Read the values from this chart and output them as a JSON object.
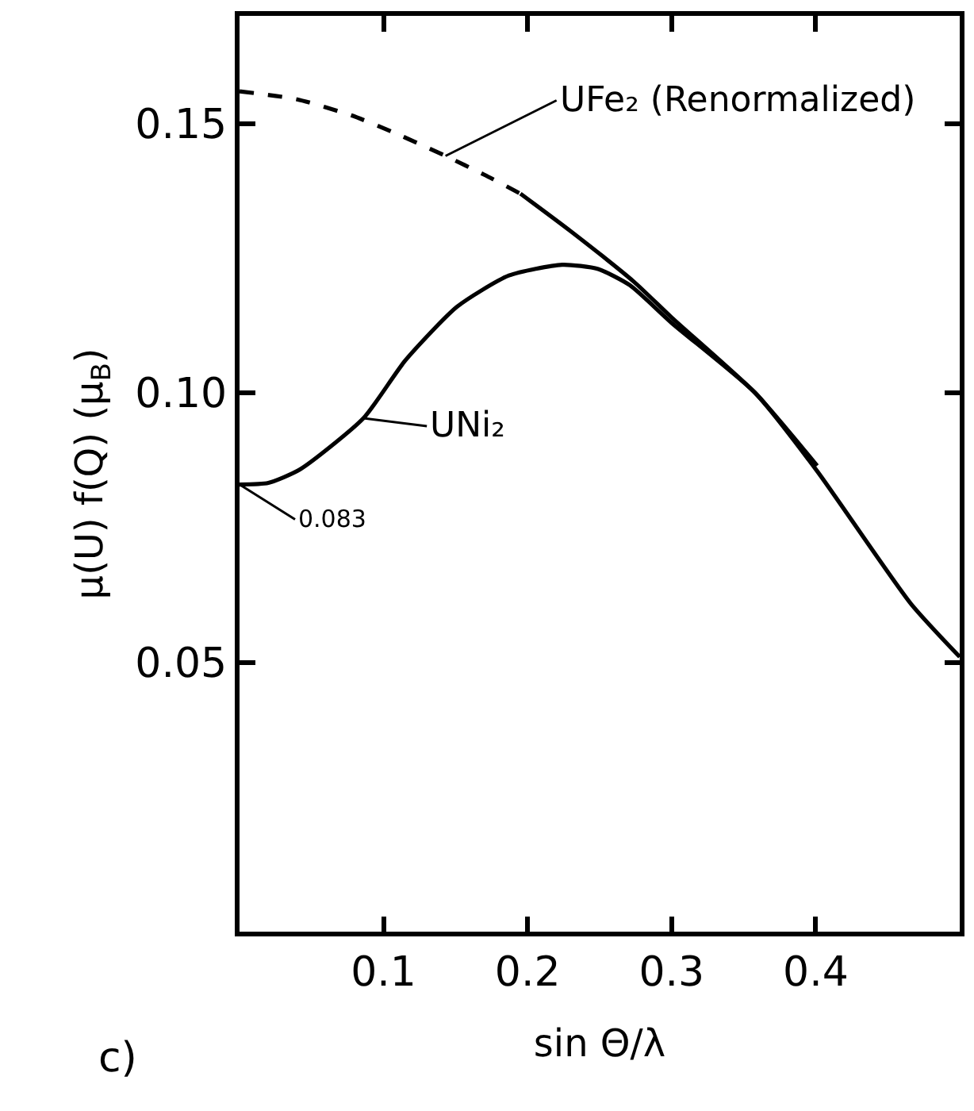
{
  "chart_data": {
    "type": "line",
    "xlabel": "sin Θ/λ",
    "ylabel": "μ(U) f(Q) (μ$_{B}$)",
    "xlim": [
      0,
      0.5
    ],
    "ylim": [
      0,
      0.17
    ],
    "xticks": [
      0.1,
      0.2,
      0.3,
      0.4
    ],
    "yticks": [
      0.05,
      {
        "value": 0.1,
        "label": "0.10"
      },
      0.15
    ],
    "marker": "none",
    "series": [
      {
        "color": "#000000",
        "line_style": "solid",
        "x": [
          0,
          0.02,
          0.042,
          0.086,
          0.115,
          0.151,
          0.187,
          0.224,
          0.249,
          0.271,
          0.3,
          0.358,
          0.401,
          0.466,
          0.5
        ],
        "values": [
          0.083,
          0.0833,
          0.0858,
          0.0953,
          0.106,
          0.116,
          0.1218,
          0.1238,
          0.123,
          0.12,
          0.113,
          0.1,
          0.0855,
          0.0609,
          0.051
        ]
      },
      {
        "color": "#000000",
        "line_style": "dashed",
        "x": [
          0,
          0.04,
          0.078,
          0.11,
          0.143,
          0.17,
          0.195
        ],
        "values": [
          0.156,
          0.1545,
          0.1515,
          0.148,
          0.144,
          0.1405,
          0.137
        ]
      },
      {
        "color": "#000000",
        "line_style": "solid",
        "x": [
          0.195,
          0.23,
          0.274,
          0.3,
          0.358,
          0.401
        ],
        "values": [
          0.137,
          0.13,
          0.1206,
          0.114,
          0.1,
          0.0865
        ]
      }
    ],
    "annotations": [
      {
        "text": "UFe₂ (Renormalized)",
        "x": 0.143,
        "y": 0.144
      },
      {
        "text": "UNi₂",
        "x": 0.086,
        "y": 0.0953
      },
      {
        "text": "0.083",
        "x": 0,
        "y": 0.083
      },
      "c)"
    ]
  }
}
